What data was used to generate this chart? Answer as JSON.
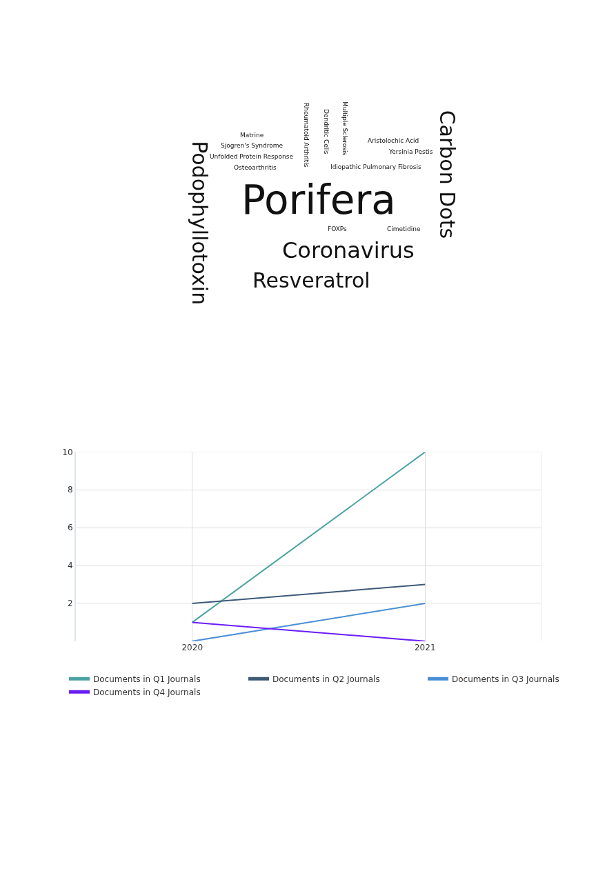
{
  "chart_data": [
    {
      "type": "other",
      "annotations": [
        "Podophyllotoxin",
        "Matrine",
        "Sjogren's Syndrome",
        "Unfolded Protein Response",
        "Osteoarthritis",
        "Rheumatoid Arthritis",
        "Dendritic Cells",
        "Multiple Sclerosis",
        "Aristolochic Acid",
        "Yersinia Pestis",
        "Idiopathic Pulmonary Fibrosis",
        "Porifera",
        "FOXPs",
        "Cimetidine",
        "Coronavirus",
        "Resveratrol",
        "Carbon Dots"
      ]
    },
    {
      "type": "line",
      "categories": [
        "2020",
        "2021"
      ],
      "ylim": [
        0,
        10
      ],
      "yticks": [
        2,
        4,
        6,
        8,
        10
      ],
      "grid": true,
      "legend": "bottom",
      "marker": "none",
      "line_style": "solid",
      "series": [
        {
          "name": "Documents in Q1 Journals",
          "color": "#4aa3a2",
          "values": [
            1,
            10
          ]
        },
        {
          "name": "Documents in Q2 Journals",
          "color": "#3d5a78",
          "values": [
            2,
            3
          ]
        },
        {
          "name": "Documents in Q3 Journals",
          "color": "#4a8fd6",
          "values": [
            0,
            2
          ]
        },
        {
          "name": "Documents in Q4 Journals",
          "color": "#6a1df5",
          "values": [
            1,
            0
          ]
        }
      ]
    }
  ]
}
